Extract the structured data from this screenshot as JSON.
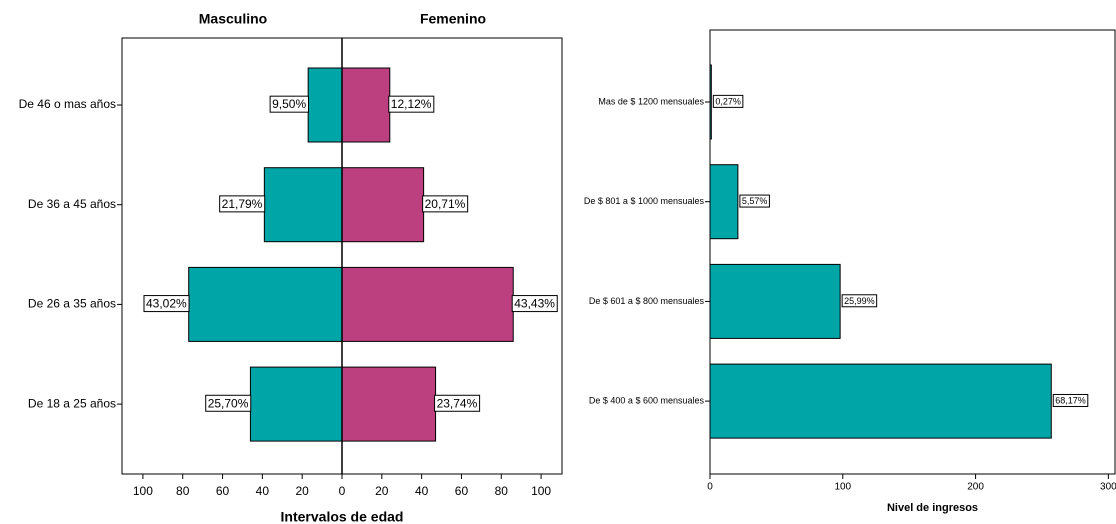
{
  "chart_data": [
    {
      "type": "pyramid",
      "xlabel": "Intervalos de edad",
      "categories": [
        "De 46 o mas años",
        "De 36 a 45 años",
        "De 26 a 35 años",
        "De 18 a 25 años"
      ],
      "series": [
        {
          "name": "Masculino",
          "color": "#00a5a8",
          "values": [
            17,
            39,
            77,
            46
          ],
          "labels": [
            "9,50%",
            "21,79%",
            "43,02%",
            "25,70%"
          ]
        },
        {
          "name": "Femenino",
          "color": "#bc3f7f",
          "values": [
            24,
            41,
            86,
            47
          ],
          "labels": [
            "12,12%",
            "20,71%",
            "43,43%",
            "23,74%"
          ]
        }
      ],
      "xlim": [
        -110.5,
        110.5
      ],
      "xticks": [
        {
          "value": -100,
          "label": "100"
        },
        {
          "value": -80,
          "label": "80"
        },
        {
          "value": -60,
          "label": "60"
        },
        {
          "value": -40,
          "label": "40"
        },
        {
          "value": -20,
          "label": "20"
        },
        0,
        20,
        40,
        60,
        80,
        100
      ]
    },
    {
      "type": "bar",
      "orientation": "horizontal",
      "xlabel": "Nivel de ingresos",
      "categories": [
        "Mas de $ 1200 mensuales",
        "De $ 801 a $ 1000 mensuales",
        "De $ 601 a $ 800 mensuales",
        "De $ 400 a $ 600 mensuales"
      ],
      "values": [
        1,
        21,
        98,
        257
      ],
      "labels": [
        "0,27%",
        "5,57%",
        "25,99%",
        "68,17%"
      ],
      "color": "#00a5a8",
      "xlim": [
        0,
        305
      ],
      "xticks": [
        0,
        100,
        200,
        300
      ]
    }
  ]
}
